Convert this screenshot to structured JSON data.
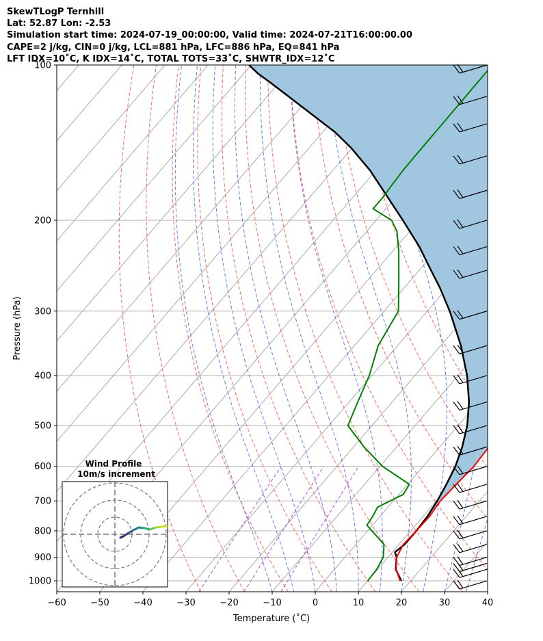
{
  "header": {
    "line1": "SkewTLogP Ternhill",
    "line2": "Lat: 52.87   Lon: -2.53",
    "line3": "Simulation start time: 2024-07-19_00:00:00, Valid time: 2024-07-21T16:00:00.00",
    "line4": "CAPE=2 j/kg, CIN=0 j/kg, LCL=881 hPa, LFC=886 hPa, EQ=841 hPa",
    "line5": "LFT IDX=10˚C, K IDX=14˚C, TOTAL TOTS=33˚C, SHWTR_IDX=12˚C"
  },
  "chart_data": {
    "type": "line",
    "subtype": "skew-T log-P diagram",
    "xlabel": "Temperature (˚C)",
    "ylabel": "Pressure (hPa)",
    "x_ticks": [
      -60,
      -50,
      -40,
      -30,
      -20,
      -10,
      0,
      10,
      20,
      30,
      40
    ],
    "y_ticks": [
      100,
      200,
      300,
      400,
      500,
      600,
      700,
      800,
      900,
      1000
    ],
    "xlim": [
      -60,
      40
    ],
    "ylim": [
      1050,
      100
    ],
    "y_scale": "log",
    "grid": true,
    "series": [
      {
        "role": "temperature",
        "color": "#ff0000",
        "points": [
          [
            17.5,
            1000
          ],
          [
            14.3,
            950
          ],
          [
            12.0,
            900
          ],
          [
            11.0,
            850
          ],
          [
            11.3,
            800
          ],
          [
            11.5,
            750
          ],
          [
            10.9,
            700
          ],
          [
            11.3,
            650
          ],
          [
            11.8,
            600
          ],
          [
            11.4,
            550
          ],
          [
            10.1,
            500
          ],
          [
            7.5,
            450
          ],
          [
            4.1,
            400
          ],
          [
            0.8,
            350
          ],
          [
            -3.0,
            300
          ],
          [
            -7.5,
            260
          ],
          [
            -12.0,
            230
          ],
          [
            -17.5,
            200
          ],
          [
            -24.4,
            170
          ],
          [
            -29.7,
            150
          ],
          [
            -33.6,
            140
          ],
          [
            -42.3,
            120
          ],
          [
            -51.0,
            105
          ],
          [
            -54.0,
            100
          ]
        ]
      },
      {
        "role": "dewpoint",
        "color": "#008000",
        "points": [
          [
            10.0,
            1000
          ],
          [
            9.8,
            950
          ],
          [
            8.9,
            900
          ],
          [
            6.5,
            850
          ],
          [
            -1.3,
            780
          ],
          [
            -1.7,
            750
          ],
          [
            -2.4,
            720
          ],
          [
            1.0,
            680
          ],
          [
            0.4,
            650
          ],
          [
            -9.4,
            600
          ],
          [
            -17.6,
            550
          ],
          [
            -25.6,
            500
          ],
          [
            -28.0,
            450
          ],
          [
            -30.6,
            400
          ],
          [
            -34.5,
            350
          ],
          [
            -36.7,
            300
          ],
          [
            -43.0,
            260
          ],
          [
            -48.5,
            230
          ],
          [
            -53.0,
            210
          ],
          [
            -56.4,
            200
          ],
          [
            -63.0,
            190
          ],
          [
            -63.0,
            180
          ],
          [
            -63.4,
            170
          ],
          [
            -63.7,
            160
          ],
          [
            -63.8,
            150
          ],
          [
            -64.0,
            100
          ]
        ]
      },
      {
        "role": "parcel",
        "color": "#000000",
        "points": [
          [
            17.8,
            1000
          ],
          [
            14.2,
            950
          ],
          [
            12.0,
            900
          ],
          [
            10.6,
            880
          ],
          [
            11.3,
            850
          ],
          [
            11.3,
            800
          ],
          [
            11.0,
            750
          ],
          [
            10.2,
            700
          ],
          [
            9.0,
            650
          ],
          [
            7.5,
            600
          ],
          [
            5.2,
            550
          ],
          [
            2.1,
            500
          ],
          [
            -2.2,
            450
          ],
          [
            -7.9,
            400
          ],
          [
            -15.3,
            350
          ],
          [
            -24.8,
            300
          ],
          [
            -31.8,
            270
          ],
          [
            -37.3,
            250
          ],
          [
            -44.7,
            225
          ],
          [
            -53.8,
            200
          ],
          [
            -65.7,
            172
          ],
          [
            -71.4,
            160
          ],
          [
            -80.1,
            145
          ],
          [
            -87.1,
            135
          ],
          [
            -107.1,
            113
          ],
          [
            -112.2,
            108
          ],
          [
            -116.6,
            104
          ],
          [
            -120.5,
            100
          ]
        ]
      }
    ],
    "reference_lines": {
      "isotherms_color": "#aaaaaa",
      "dry_adiabats_color": "#ff5555",
      "moist_adiabats_color": "#4444ff",
      "mixing_ratio_color": "#9933cc"
    },
    "cape_shading_color": "#a1c6e0",
    "wind_barbs_pressures": [
      1000,
      950,
      925,
      900,
      850,
      800,
      750,
      700,
      650,
      600,
      550,
      500,
      450,
      400,
      350,
      300,
      250,
      225,
      200,
      175,
      150,
      130,
      115,
      100
    ]
  },
  "hodograph": {
    "title_line1": "Wind Profile",
    "title_line2": "10m/s increment"
  }
}
